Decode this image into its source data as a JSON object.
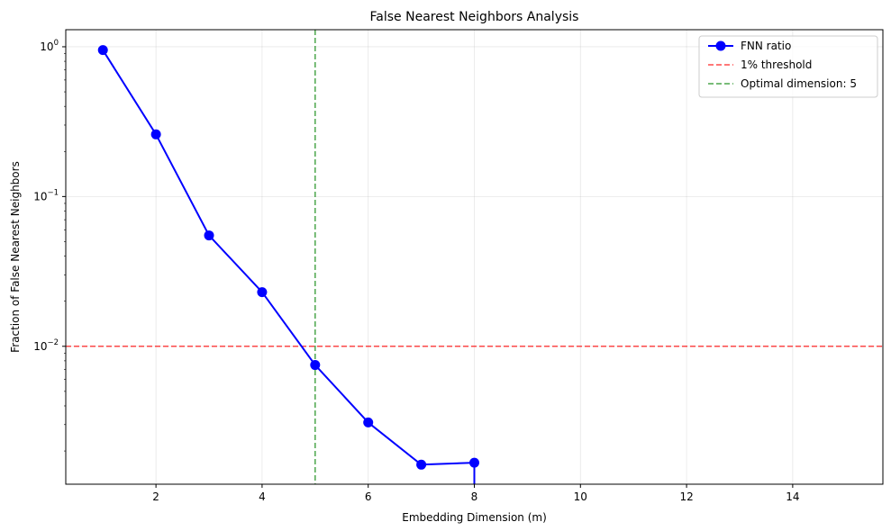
{
  "chart_data": {
    "type": "line",
    "title": "False Nearest Neighbors Analysis",
    "xlabel": "Embedding Dimension (m)",
    "ylabel": "Fraction of False Nearest Neighbors",
    "xlim": [
      0.3,
      15.7
    ],
    "ylim": [
      0.0012,
      1.3
    ],
    "yscale": "log",
    "x_ticks": [
      2,
      4,
      6,
      8,
      10,
      12,
      14
    ],
    "y_ticks": [
      {
        "value": 1,
        "base": "10",
        "exp": "0"
      },
      {
        "value": 0.1,
        "base": "10",
        "exp": "−1"
      },
      {
        "value": 0.01,
        "base": "10",
        "exp": "−2"
      }
    ],
    "grid": true,
    "legend_position": "top-right",
    "series": [
      {
        "name": "FNN ratio",
        "color": "#0000ff",
        "marker": "circle",
        "x": [
          1,
          2,
          3,
          4,
          5,
          6,
          7,
          8
        ],
        "y": [
          0.95,
          0.26,
          0.055,
          0.023,
          0.0075,
          0.0031,
          0.00162,
          0.00167
        ],
        "drop_to_zero_after_last": true
      }
    ],
    "hlines": [
      {
        "name": "1% threshold",
        "y": 0.01,
        "color": "#ff0000",
        "style": "dashed"
      }
    ],
    "vlines": [
      {
        "name": "Optimal dimension: 5",
        "x": 5,
        "color": "#008000",
        "style": "dashed"
      }
    ]
  }
}
